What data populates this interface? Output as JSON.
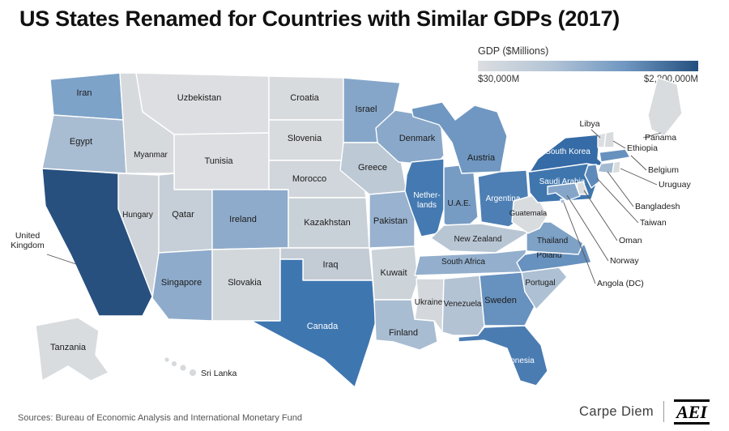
{
  "title": "US States Renamed for Countries with Similar GDPs (2017)",
  "legend": {
    "title": "GDP ($Millions)",
    "min_label": "$30,000M",
    "max_label": "$2,800,000M",
    "stops": [
      "#dcdee1",
      "#b3c4d6",
      "#6f97c1",
      "#24507e"
    ]
  },
  "sources": "Sources: Bureau of Economic Analysis and International Monetary Fund",
  "footer": {
    "brand": "Carpe Diem",
    "logo": "AEI"
  },
  "map": {
    "states": [
      {
        "id": "WA",
        "country": "Iran",
        "color": "#7ea3c9"
      },
      {
        "id": "OR",
        "country": "Egypt",
        "color": "#a8bcd2"
      },
      {
        "id": "ID",
        "country": "Myanmar",
        "color": "#d7dadd"
      },
      {
        "id": "MT",
        "country": "Uzbekistan",
        "color": "#dcdee1"
      },
      {
        "id": "WY",
        "country": "Tunisia",
        "color": "#dcdee1"
      },
      {
        "id": "NV",
        "country": "Hungary",
        "color": "#ced4da"
      },
      {
        "id": "CA",
        "country": "United Kingdom",
        "lines": [
          "United",
          "Kingdom"
        ],
        "color": "#27507f"
      },
      {
        "id": "UT",
        "country": "Qatar",
        "color": "#c6cfd7"
      },
      {
        "id": "CO",
        "country": "Ireland",
        "color": "#8eabcb"
      },
      {
        "id": "AZ",
        "country": "Singapore",
        "color": "#8eabcb"
      },
      {
        "id": "NM",
        "country": "Slovakia",
        "color": "#d2d7db"
      },
      {
        "id": "ND",
        "country": "Croatia",
        "color": "#d8dbde"
      },
      {
        "id": "SD",
        "country": "Slovenia",
        "color": "#d8dbde"
      },
      {
        "id": "NE",
        "country": "Morocco",
        "color": "#d0d6db"
      },
      {
        "id": "KS",
        "country": "Kazakhstan",
        "color": "#c9d1d8"
      },
      {
        "id": "OK",
        "country": "Iraq",
        "color": "#c3ccd5"
      },
      {
        "id": "TX",
        "country": "Canada",
        "color": "#3e76b0"
      },
      {
        "id": "MN",
        "country": "Israel",
        "color": "#85a6c9"
      },
      {
        "id": "IA",
        "country": "Greece",
        "color": "#bdc9d4"
      },
      {
        "id": "MO",
        "country": "Pakistan",
        "color": "#98b2cf"
      },
      {
        "id": "AR",
        "country": "Kuwait",
        "color": "#ccd3d9"
      },
      {
        "id": "LA",
        "country": "Finland",
        "color": "#a9bdd2"
      },
      {
        "id": "WI",
        "country": "Denmark",
        "color": "#8aa9ca"
      },
      {
        "id": "IL",
        "country": "Netherlands",
        "lines": [
          "Nether-",
          "lands"
        ],
        "color": "#447ab1"
      },
      {
        "id": "IN",
        "country": "U.A.E.",
        "color": "#779cc4"
      },
      {
        "id": "MI",
        "country": "Austria",
        "color": "#6f97c1"
      },
      {
        "id": "OH",
        "country": "Argentina",
        "color": "#4d7fb4"
      },
      {
        "id": "KY",
        "country": "New Zealand",
        "color": "#b8c6d4"
      },
      {
        "id": "TN",
        "country": "South Africa",
        "color": "#93afcd"
      },
      {
        "id": "MS",
        "country": "Ukraine",
        "color": "#d4d8dc"
      },
      {
        "id": "AL",
        "country": "Venezuela",
        "color": "#b4c3d4"
      },
      {
        "id": "GA",
        "country": "Sweden",
        "color": "#6791be"
      },
      {
        "id": "FL",
        "country": "Indonesia",
        "color": "#4a7cb2"
      },
      {
        "id": "SC",
        "country": "Portugal",
        "color": "#aec0d3"
      },
      {
        "id": "NC",
        "country": "Poland",
        "color": "#6791be"
      },
      {
        "id": "VA",
        "country": "Thailand",
        "color": "#7ea1c6"
      },
      {
        "id": "WV",
        "country": "Guatemala",
        "color": "#d9dcdf"
      },
      {
        "id": "PA",
        "country": "Saudi Arabia",
        "color": "#4076ae"
      },
      {
        "id": "NY",
        "country": "South Korea",
        "color": "#356ba6"
      },
      {
        "id": "VT",
        "country": "Libya",
        "color": "#dcdee1"
      },
      {
        "id": "NH",
        "country": "Ethiopia",
        "color": "#d9dcdf"
      },
      {
        "id": "ME",
        "country": "Panama",
        "color": "#d9dcdf"
      },
      {
        "id": "MA",
        "country": "Belgium",
        "color": "#6791be"
      },
      {
        "id": "RI",
        "country": "Uruguay",
        "color": "#d9dcdf"
      },
      {
        "id": "CT",
        "country": "Bangladesh",
        "color": "#a4bad1"
      },
      {
        "id": "NJ",
        "country": "Taiwan",
        "color": "#5f8bba"
      },
      {
        "id": "DE",
        "country": "Oman",
        "color": "#d9dcdf"
      },
      {
        "id": "MD",
        "country": "Norway",
        "color": "#85a6c9"
      },
      {
        "id": "DC",
        "country": "Angola (DC)",
        "color": "#a9bdd2"
      },
      {
        "id": "AK",
        "country": "Tanzania",
        "color": "#d9dcdf"
      },
      {
        "id": "HI",
        "country": "Sri Lanka",
        "color": "#d7dadd"
      }
    ]
  }
}
